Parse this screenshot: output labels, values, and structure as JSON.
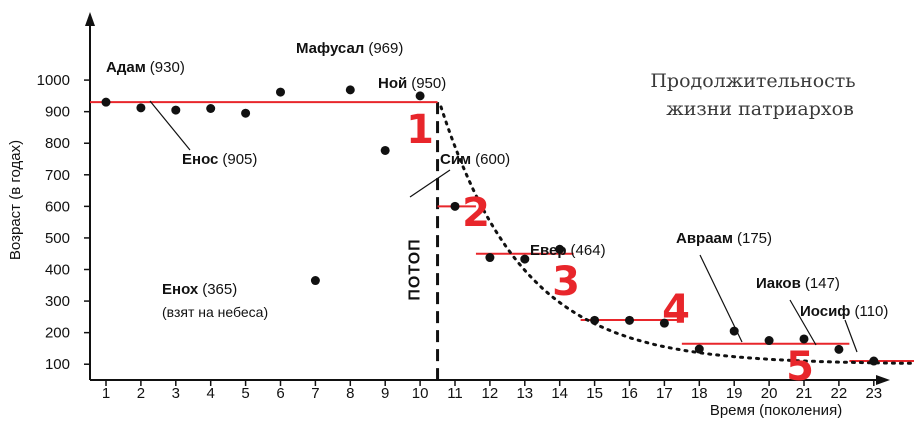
{
  "chart_data": {
    "type": "scatter",
    "title_lines": [
      "Продолжительность",
      "жизни патриархов"
    ],
    "xlabel": "Время (поколения)",
    "ylabel": "Возраст (в годах)",
    "x_ticks": [
      1,
      2,
      3,
      4,
      5,
      6,
      7,
      8,
      9,
      10,
      11,
      12,
      13,
      14,
      15,
      16,
      17,
      18,
      19,
      20,
      21,
      22,
      23
    ],
    "y_ticks": [
      100,
      200,
      300,
      400,
      500,
      600,
      700,
      800,
      900,
      1000
    ],
    "xlim": [
      0,
      24.5
    ],
    "ylim": [
      50,
      1060
    ],
    "points": [
      {
        "x": 1,
        "y": 930
      },
      {
        "x": 2,
        "y": 912
      },
      {
        "x": 3,
        "y": 905
      },
      {
        "x": 4,
        "y": 910
      },
      {
        "x": 5,
        "y": 895
      },
      {
        "x": 6,
        "y": 962
      },
      {
        "x": 7,
        "y": 365
      },
      {
        "x": 8,
        "y": 969
      },
      {
        "x": 9,
        "y": 777
      },
      {
        "x": 10,
        "y": 950
      },
      {
        "x": 11,
        "y": 600
      },
      {
        "x": 12,
        "y": 438
      },
      {
        "x": 13,
        "y": 433
      },
      {
        "x": 14,
        "y": 464
      },
      {
        "x": 15,
        "y": 239
      },
      {
        "x": 16,
        "y": 239
      },
      {
        "x": 17,
        "y": 230
      },
      {
        "x": 18,
        "y": 148
      },
      {
        "x": 19,
        "y": 205
      },
      {
        "x": 20,
        "y": 175
      },
      {
        "x": 21,
        "y": 180
      },
      {
        "x": 22,
        "y": 147
      },
      {
        "x": 23,
        "y": 110
      }
    ],
    "labels": [
      {
        "name": "Адам",
        "value": "(930)"
      },
      {
        "name": "Мафусал",
        "value": "(969)"
      },
      {
        "name": "Ной",
        "value": "(950)"
      },
      {
        "name": "Енос",
        "value": "(905)"
      },
      {
        "name": "Енох",
        "value": "(365)",
        "note": "(взят на небеса)"
      },
      {
        "name": "Сим",
        "value": "(600)"
      },
      {
        "name": "Евер",
        "value": "(464)"
      },
      {
        "name": "Авраам",
        "value": "(175)"
      },
      {
        "name": "Иаков",
        "value": "(147)"
      },
      {
        "name": "Иосиф",
        "value": "(110)"
      }
    ],
    "flood_label": "ПОТОП",
    "pre_flood_level": 930,
    "eras": [
      {
        "label": "1",
        "level": null
      },
      {
        "label": "2",
        "level": 450,
        "x_from": 11.6,
        "x_to": 14.4
      },
      {
        "label": "3",
        "level": 240,
        "x_from": 14.6,
        "x_to": 17.5
      },
      {
        "label": "4",
        "level": 165,
        "x_from": 17.5,
        "x_to": 22.3
      },
      {
        "label": "5",
        "level": 110,
        "x_from": 22.3,
        "x_to": 24.4
      }
    ],
    "sim_segment": {
      "level": 600,
      "x_from": 10.5,
      "x_to": 11.6
    },
    "accent_color": "#e8262b",
    "grid": false,
    "legend": "none"
  }
}
